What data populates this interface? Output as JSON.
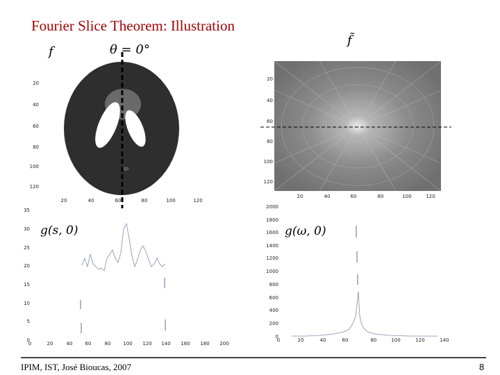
{
  "header": {
    "title": "Fourier Slice Theorem: Illustration"
  },
  "figures": [
    {
      "label": "f",
      "angle_label": "θ = 0°",
      "yticks": [
        "20",
        "40",
        "60",
        "80",
        "100",
        "120"
      ],
      "xticks": [
        "20",
        "40",
        "60",
        "80",
        "100",
        "120"
      ]
    },
    {
      "label": "f̃",
      "yticks": [
        "20",
        "40",
        "60",
        "80",
        "100",
        "120"
      ],
      "xticks": [
        "20",
        "40",
        "60",
        "80",
        "100",
        "120"
      ]
    },
    {
      "label": "g(s, 0)",
      "yticks": [
        "35",
        "30",
        "25",
        "20",
        "15",
        "10",
        "5",
        "0"
      ],
      "xticks": [
        "0",
        "20",
        "40",
        "60",
        "80",
        "100",
        "120",
        "140",
        "160",
        "180",
        "200"
      ]
    },
    {
      "label": "g(ω, 0)",
      "yticks": [
        "2000",
        "1800",
        "1600",
        "1400",
        "1200",
        "1000",
        "800",
        "600",
        "400",
        "200",
        "0"
      ],
      "xticks": [
        "0",
        "20",
        "40",
        "60",
        "80",
        "100",
        "120",
        "140"
      ]
    }
  ],
  "footer": {
    "credit": "IPIM, IST, José Bioucas, 2007",
    "page": "8"
  }
}
